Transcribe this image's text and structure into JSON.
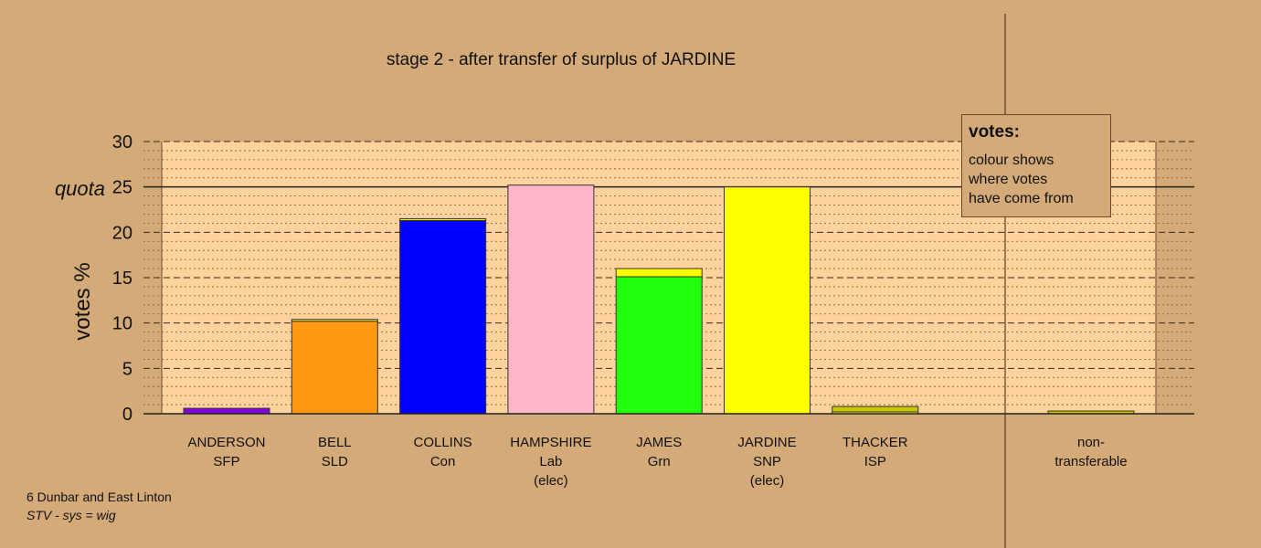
{
  "chart_data": {
    "type": "bar",
    "title": "stage 2 - after transfer of surplus of JARDINE",
    "ylabel": "votes %",
    "ylim": [
      0,
      30
    ],
    "yticks": [
      0,
      5,
      10,
      15,
      20,
      25,
      30
    ],
    "quota": {
      "label": "quota",
      "value": 25
    },
    "categories": [
      {
        "name": "ANDERSON",
        "party": "SFP",
        "status": ""
      },
      {
        "name": "BELL",
        "party": "SLD",
        "status": ""
      },
      {
        "name": "COLLINS",
        "party": "Con",
        "status": ""
      },
      {
        "name": "HAMPSHIRE",
        "party": "Lab",
        "status": "(elec)"
      },
      {
        "name": "JAMES",
        "party": "Grn",
        "status": ""
      },
      {
        "name": "JARDINE",
        "party": "SNP",
        "status": "(elec)"
      },
      {
        "name": "THACKER",
        "party": "ISP",
        "status": ""
      }
    ],
    "series": [
      {
        "color": "#8000e0",
        "values": [
          0.6,
          null,
          null,
          null,
          null,
          null,
          null
        ]
      },
      {
        "color": "#ff9912",
        "values": [
          null,
          10.2,
          null,
          null,
          null,
          null,
          null
        ]
      },
      {
        "color": "#0000ff",
        "values": [
          null,
          null,
          21.3,
          null,
          null,
          null,
          null
        ]
      },
      {
        "color": "#ffb6c8",
        "values": [
          null,
          null,
          null,
          25.2,
          null,
          null,
          null
        ]
      },
      {
        "color": "#22ff0f",
        "values": [
          null,
          null,
          null,
          null,
          15.1,
          null,
          null
        ]
      },
      {
        "color": "#ffff00",
        "values": [
          0.0,
          0.2,
          0.2,
          0.0,
          0.9,
          25.0,
          0.2
        ]
      },
      {
        "color": "#c8c800",
        "values": [
          null,
          null,
          null,
          null,
          null,
          null,
          0.6
        ]
      }
    ],
    "non_transferable": {
      "label_line1": "non-",
      "label_line2": "transferable",
      "value": 0.3,
      "color": "#c8c800"
    },
    "grid": true,
    "legend": {
      "title": "votes:",
      "lines": [
        "colour shows",
        "where votes",
        "have come from"
      ]
    }
  },
  "footer": {
    "line1": "6 Dunbar and East Linton",
    "line2": "STV - sys = wig"
  },
  "colors": {
    "background": "#d4aa78",
    "plot_area": "#fdd29c"
  }
}
